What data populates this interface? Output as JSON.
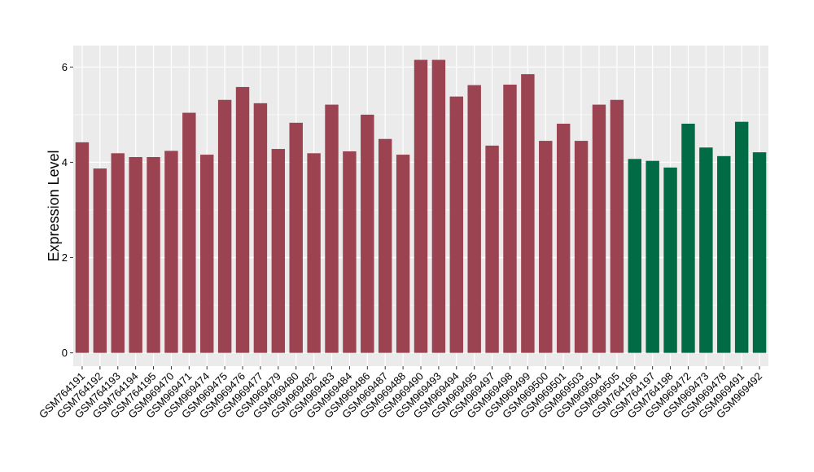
{
  "chart_data": {
    "type": "bar",
    "ylabel": "Expression Level",
    "xlabel": "",
    "ylim": [
      -0.28,
      6.45
    ],
    "yticks": [
      0,
      2,
      4,
      6
    ],
    "grid": true,
    "colors": {
      "group1": "#9B4351",
      "group2": "#006B45",
      "panel": "#EBEBEB",
      "grid": "#FFFFFF"
    },
    "categories": [
      "GSM764191",
      "GSM764192",
      "GSM764193",
      "GSM764194",
      "GSM764195",
      "GSM969470",
      "GSM969471",
      "GSM969474",
      "GSM969475",
      "GSM969476",
      "GSM969477",
      "GSM969479",
      "GSM969480",
      "GSM969482",
      "GSM969483",
      "GSM969484",
      "GSM969486",
      "GSM969487",
      "GSM969488",
      "GSM969490",
      "GSM969493",
      "GSM969494",
      "GSM969495",
      "GSM969497",
      "GSM969498",
      "GSM969499",
      "GSM969500",
      "GSM969501",
      "GSM969503",
      "GSM969504",
      "GSM969505",
      "GSM764196",
      "GSM764197",
      "GSM764198",
      "GSM969472",
      "GSM969473",
      "GSM969478",
      "GSM969491",
      "GSM969492"
    ],
    "values": [
      4.42,
      3.87,
      4.19,
      4.11,
      4.11,
      4.24,
      5.04,
      4.16,
      5.31,
      5.58,
      5.24,
      4.28,
      4.83,
      4.19,
      5.21,
      4.23,
      5.0,
      4.49,
      4.16,
      6.15,
      6.15,
      5.38,
      5.62,
      4.35,
      5.63,
      5.85,
      4.45,
      4.81,
      4.45,
      5.21,
      5.31,
      4.07,
      4.03,
      3.89,
      4.81,
      4.31,
      4.13,
      4.85,
      4.21
    ],
    "groups": [
      "group1",
      "group1",
      "group1",
      "group1",
      "group1",
      "group1",
      "group1",
      "group1",
      "group1",
      "group1",
      "group1",
      "group1",
      "group1",
      "group1",
      "group1",
      "group1",
      "group1",
      "group1",
      "group1",
      "group1",
      "group1",
      "group1",
      "group1",
      "group1",
      "group1",
      "group1",
      "group1",
      "group1",
      "group1",
      "group1",
      "group1",
      "group2",
      "group2",
      "group2",
      "group2",
      "group2",
      "group2",
      "group2",
      "group2"
    ]
  }
}
